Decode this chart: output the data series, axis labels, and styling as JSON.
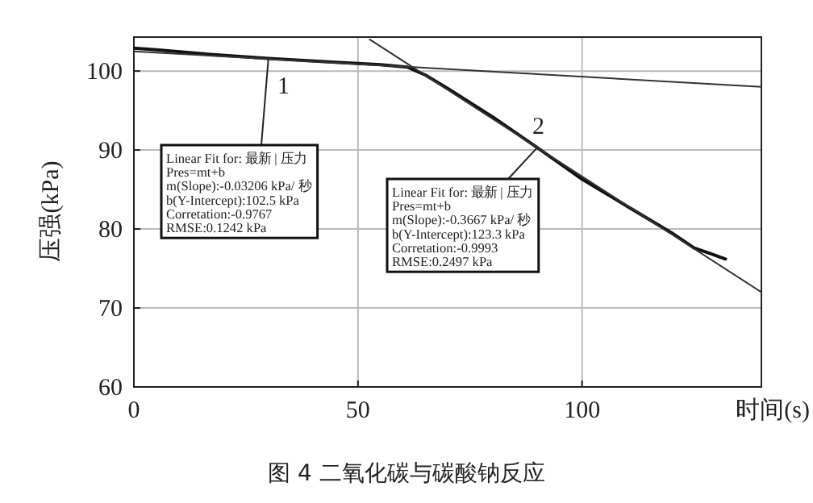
{
  "chart_data": {
    "type": "line",
    "title": "图 4  二氧化碳与碳酸钠反应",
    "xlabel": "时间(s)",
    "ylabel": "压强(kPa)",
    "xlim": [
      0,
      140
    ],
    "ylim": [
      60,
      104.3
    ],
    "xticks": [
      0,
      50,
      100
    ],
    "yticks": [
      60,
      70,
      80,
      90,
      100
    ],
    "grid": true,
    "marker": "none",
    "line_style": "solid",
    "series": [
      {
        "color": "#111111",
        "x": [
          0,
          5,
          15,
          30,
          45,
          55,
          61,
          65,
          70,
          80,
          90,
          100,
          110,
          120,
          125,
          128,
          132
        ],
        "values": [
          102.9,
          102.7,
          102.2,
          101.6,
          101.1,
          100.8,
          100.5,
          99.5,
          97.8,
          94.2,
          90.3,
          86.3,
          82.9,
          79.5,
          77.6,
          77.0,
          76.2
        ]
      },
      {
        "color": "#333333",
        "x": [
          0,
          140
        ],
        "values": [
          102.5,
          98.0
        ]
      },
      {
        "color": "#333333",
        "x": [
          52.6,
          140
        ],
        "values": [
          104.0,
          72.0
        ]
      }
    ],
    "annotations": [
      {
        "text": "Linear Fit for: 最新 | 压力\nPres=mt+b\nm(Slope):-0.03206 kPa/ 秒\nb(Y-Intercept):102.5 kPa\nCorretation:-0.9767\nRMSE:0.1242 kPa",
        "x": 30,
        "y": 101.5
      },
      {
        "text": "Linear Fit for: 最新 | 压力\nPres=mt+b\nm(Slope):-0.3667 kPa/ 秒\nb(Y-Intercept):123.3 kPa\nCorretation:-0.9993\nRMSE:0.2497 kPa",
        "x": 90,
        "y": 90.3
      },
      "1",
      "2"
    ]
  }
}
